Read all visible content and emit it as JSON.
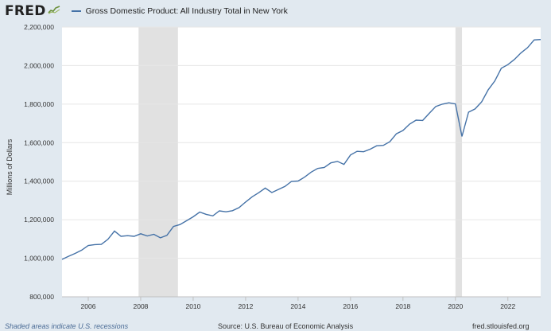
{
  "header": {
    "logo_text": "FRED",
    "logo_icon": "fred-chart-icon",
    "series_name": "Gross Domestic Product: All Industry Total in New York"
  },
  "colors": {
    "background": "#e1e9f0",
    "plot_bg": "#ffffff",
    "series": "#4572a7",
    "recession": "#e1e1e1",
    "grid": "#e6e6e6"
  },
  "footer": {
    "recession_note": "Shaded areas indicate U.S. recessions",
    "source": "Source: U.S. Bureau of Economic Analysis",
    "site": "fred.stlouisfed.org"
  },
  "chart_data": {
    "type": "line",
    "title": "",
    "xlabel": "",
    "ylabel": "Millions of Dollars",
    "xlim": [
      2005.0,
      2023.25
    ],
    "ylim": [
      800000,
      2200000
    ],
    "x_ticks": [
      2006,
      2008,
      2010,
      2012,
      2014,
      2016,
      2018,
      2020,
      2022
    ],
    "y_ticks": [
      800000,
      1000000,
      1200000,
      1400000,
      1600000,
      1800000,
      2000000,
      2200000
    ],
    "y_tick_labels": [
      "800,000",
      "1,000,000",
      "1,200,000",
      "1,400,000",
      "1,600,000",
      "1,800,000",
      "2,000,000",
      "2,200,000"
    ],
    "grid": true,
    "recessions": [
      [
        2007.92,
        2009.42
      ],
      [
        2020.0,
        2020.25
      ]
    ],
    "series": [
      {
        "name": "Gross Domestic Product: All Industry Total in New York",
        "x": [
          2005.0,
          2005.25,
          2005.5,
          2005.75,
          2006.0,
          2006.25,
          2006.5,
          2006.75,
          2007.0,
          2007.25,
          2007.5,
          2007.75,
          2008.0,
          2008.25,
          2008.5,
          2008.75,
          2009.0,
          2009.25,
          2009.5,
          2009.75,
          2010.0,
          2010.25,
          2010.5,
          2010.75,
          2011.0,
          2011.25,
          2011.5,
          2011.75,
          2012.0,
          2012.25,
          2012.5,
          2012.75,
          2013.0,
          2013.25,
          2013.5,
          2013.75,
          2014.0,
          2014.25,
          2014.5,
          2014.75,
          2015.0,
          2015.25,
          2015.5,
          2015.75,
          2016.0,
          2016.25,
          2016.5,
          2016.75,
          2017.0,
          2017.25,
          2017.5,
          2017.75,
          2018.0,
          2018.25,
          2018.5,
          2018.75,
          2019.0,
          2019.25,
          2019.5,
          2019.75,
          2020.0,
          2020.25,
          2020.5,
          2020.75,
          2021.0,
          2021.25,
          2021.5,
          2021.75,
          2022.0,
          2022.25,
          2022.5,
          2022.75,
          2023.0,
          2023.25
        ],
        "y": [
          994000,
          1010000,
          1025000,
          1042000,
          1066000,
          1071000,
          1072000,
          1098000,
          1141000,
          1114000,
          1117000,
          1114000,
          1127000,
          1116000,
          1124000,
          1106000,
          1119000,
          1165000,
          1175000,
          1195000,
          1215000,
          1240000,
          1228000,
          1220000,
          1246000,
          1241000,
          1247000,
          1263000,
          1292000,
          1319000,
          1340000,
          1364000,
          1341000,
          1357000,
          1373000,
          1399000,
          1401000,
          1421000,
          1447000,
          1466000,
          1471000,
          1495000,
          1503000,
          1487000,
          1536000,
          1555000,
          1553000,
          1566000,
          1584000,
          1586000,
          1605000,
          1646000,
          1663000,
          1696000,
          1717000,
          1715000,
          1752000,
          1788000,
          1800000,
          1807000,
          1801000,
          1632000,
          1758000,
          1775000,
          1812000,
          1874000,
          1920000,
          1986000,
          2005000,
          2032000,
          2066000,
          2093000,
          2133000,
          2135000
        ]
      }
    ]
  }
}
